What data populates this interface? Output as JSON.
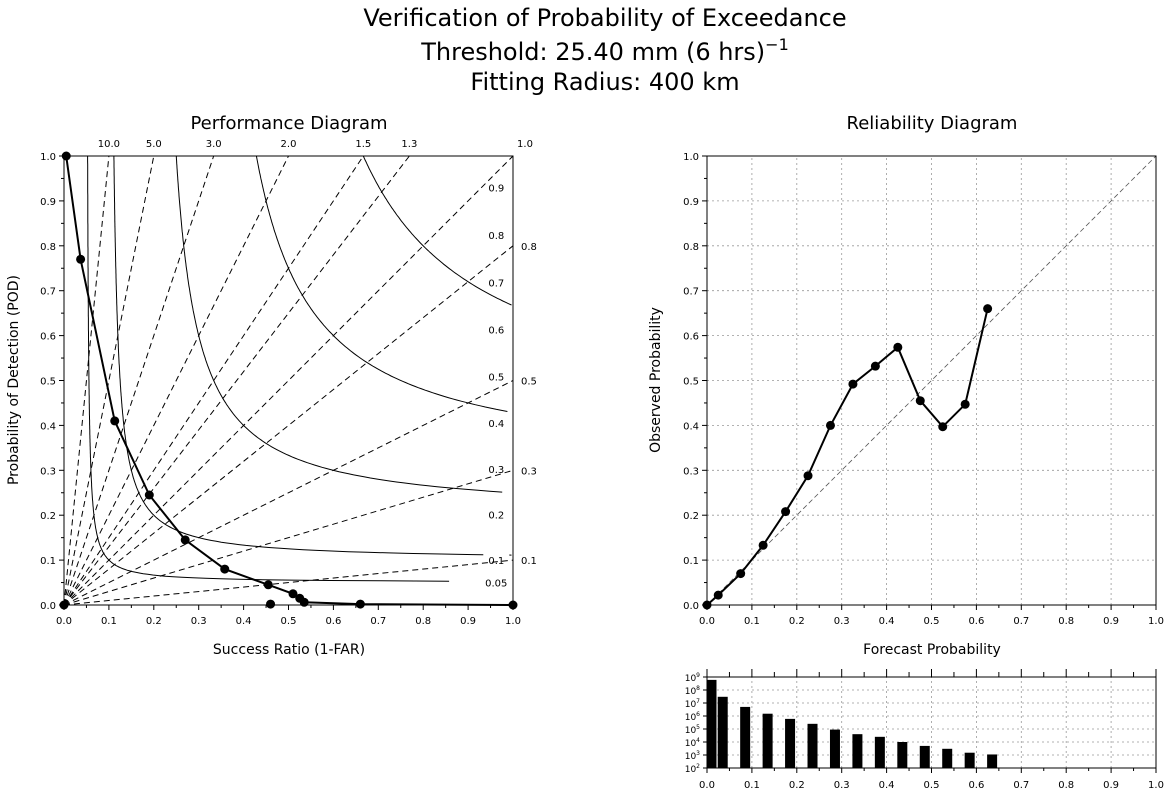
{
  "figure": {
    "title_line1": "Verification of Probability of Exceedance",
    "title_line2_prefix": "Threshold: 25.40 mm (6 hrs)",
    "title_line2_exponent": "−1",
    "title_line3": "Fitting Radius: 400 km"
  },
  "chart_data": [
    {
      "type": "line",
      "title": "Performance Diagram",
      "xlabel": "Success Ratio (1-FAR)",
      "ylabel": "Probability of Detection (POD)",
      "xlim": [
        0,
        1
      ],
      "ylim": [
        0,
        1
      ],
      "xticks": [
        "0.0",
        "0.1",
        "0.2",
        "0.3",
        "0.4",
        "0.5",
        "0.6",
        "0.7",
        "0.8",
        "0.9",
        "1.0"
      ],
      "yticks": [
        "0.0",
        "0.1",
        "0.2",
        "0.3",
        "0.4",
        "0.5",
        "0.6",
        "0.7",
        "0.8",
        "0.9",
        "1.0"
      ],
      "csi_contours": [
        0.05,
        0.1,
        0.2,
        0.3,
        0.4,
        0.5,
        0.6,
        0.7,
        0.8,
        0.9
      ],
      "csi_labels": [
        "0.05",
        "0.1",
        "0.2",
        "0.3",
        "0.4",
        "0.5",
        "0.6",
        "0.7",
        "0.8",
        "0.9"
      ],
      "bias_lines": [
        1.0,
        1.3,
        1.5,
        2.0,
        3.0,
        5.0,
        10.0
      ],
      "bias_labels_top": [
        "10.0",
        "5.0",
        "3.0",
        "2.0",
        "1.5",
        "1.3",
        "1.0"
      ],
      "bias_labels_right": [
        "0.8",
        "0.5",
        "0.3",
        "0.1"
      ],
      "series": [
        {
          "x": [
            0.005,
            0.037,
            0.113,
            0.19,
            0.27,
            0.358,
            0.455,
            0.51,
            0.525,
            0.535,
            0.66,
            1.0
          ],
          "y": [
            1.0,
            0.77,
            0.41,
            0.245,
            0.145,
            0.08,
            0.045,
            0.025,
            0.015,
            0.006,
            0.002,
            0.0
          ]
        },
        {
          "x": [
            0.0,
            0.46
          ],
          "y": [
            0.0,
            0.002
          ]
        }
      ]
    },
    {
      "type": "line",
      "title": "Reliability Diagram",
      "xlabel": "Forecast Probability",
      "ylabel": "Observed Probability",
      "xlim": [
        0,
        1
      ],
      "ylim": [
        0,
        1
      ],
      "grid": true,
      "xticks": [
        "0.0",
        "0.1",
        "0.2",
        "0.3",
        "0.4",
        "0.5",
        "0.6",
        "0.7",
        "0.8",
        "0.9",
        "1.0"
      ],
      "yticks": [
        "0.0",
        "0.1",
        "0.2",
        "0.3",
        "0.4",
        "0.5",
        "0.6",
        "0.7",
        "0.8",
        "0.9",
        "1.0"
      ],
      "series": [
        {
          "x": [
            0.0,
            0.025,
            0.075,
            0.125,
            0.175,
            0.225,
            0.275,
            0.325,
            0.375,
            0.425,
            0.475,
            0.525,
            0.575,
            0.625
          ],
          "y": [
            0.0,
            0.022,
            0.07,
            0.133,
            0.208,
            0.288,
            0.4,
            0.492,
            0.532,
            0.574,
            0.455,
            0.397,
            0.447,
            0.66
          ]
        }
      ],
      "reference_line": "1:1 diagonal"
    },
    {
      "type": "bar",
      "yscale": "log",
      "xlim": [
        0,
        1
      ],
      "ylim": [
        100,
        1000000000
      ],
      "grid": true,
      "xticks": [
        "0.0",
        "0.1",
        "0.2",
        "0.3",
        "0.4",
        "0.5",
        "0.6",
        "0.7",
        "0.8",
        "0.9",
        "1.0"
      ],
      "ytick_exponents": [
        "2",
        "3",
        "4",
        "5",
        "6",
        "7",
        "8",
        "9"
      ],
      "x": [
        0.01,
        0.035,
        0.085,
        0.135,
        0.185,
        0.235,
        0.285,
        0.335,
        0.385,
        0.435,
        0.485,
        0.535,
        0.585,
        0.635
      ],
      "values": [
        600000000,
        30000000,
        5000000,
        1500000,
        600000,
        250000,
        90000,
        40000,
        25000,
        10000,
        5000,
        3000,
        1500,
        1100
      ]
    }
  ]
}
